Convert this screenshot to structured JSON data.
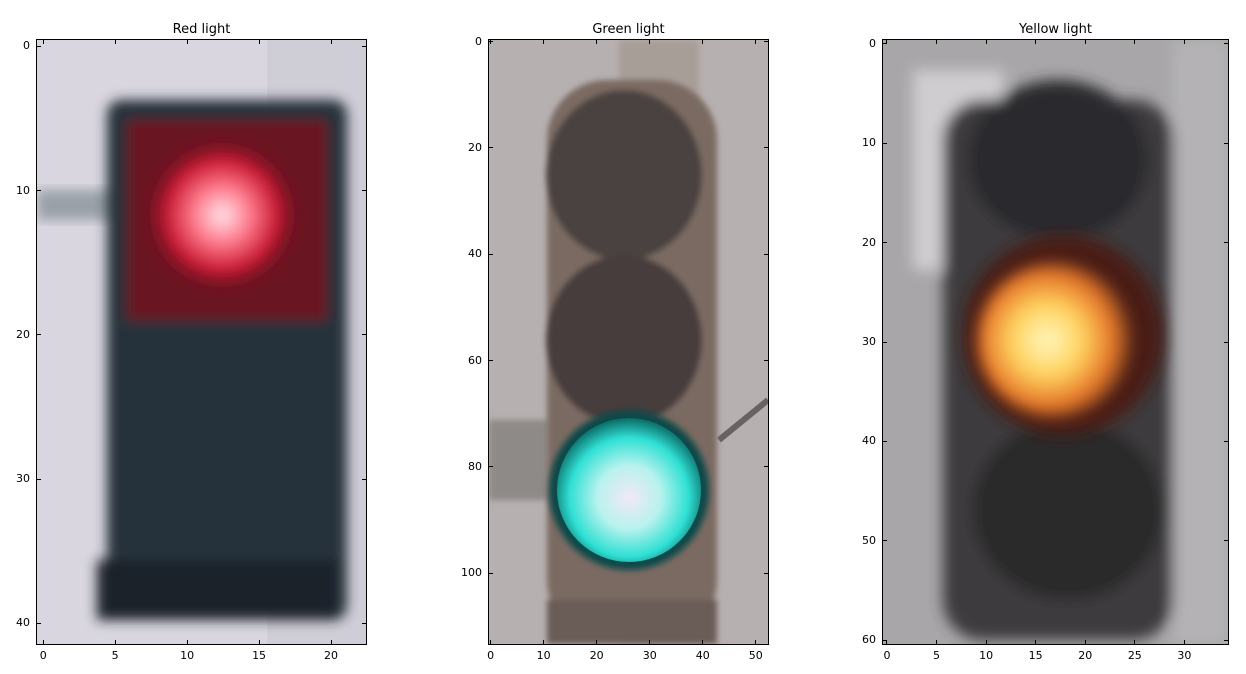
{
  "figure": {
    "panels": [
      {
        "id": "red",
        "title": "Red light",
        "light_color": "#ff3040",
        "xlim": [
          -0.5,
          22.5
        ],
        "ylim": [
          41.5,
          -0.5
        ],
        "xticks": [
          "0",
          "5",
          "10",
          "15",
          "20"
        ],
        "xtick_values": [
          0,
          5,
          10,
          15,
          20
        ],
        "yticks": [
          "0",
          "10",
          "20",
          "30",
          "40"
        ],
        "ytick_values": [
          0,
          10,
          20,
          30,
          40
        ]
      },
      {
        "id": "green",
        "title": "Green light",
        "light_color": "#3ee6dc",
        "xlim": [
          -0.5,
          52.5
        ],
        "ylim": [
          113.5,
          -0.5
        ],
        "xticks": [
          "0",
          "10",
          "20",
          "30",
          "40",
          "50"
        ],
        "xtick_values": [
          0,
          10,
          20,
          30,
          40,
          50
        ],
        "yticks": [
          "0",
          "20",
          "40",
          "60",
          "80",
          "100"
        ],
        "ytick_values": [
          0,
          20,
          40,
          60,
          80,
          100
        ]
      },
      {
        "id": "yellow",
        "title": "Yellow light",
        "light_color": "#ffc040",
        "xlim": [
          -0.5,
          34.5
        ],
        "ylim": [
          60.5,
          -0.5
        ],
        "xticks": [
          "0",
          "5",
          "10",
          "15",
          "20",
          "25",
          "30"
        ],
        "xtick_values": [
          0,
          5,
          10,
          15,
          20,
          25,
          30
        ],
        "yticks": [
          "0",
          "10",
          "20",
          "30",
          "40",
          "50",
          "60"
        ],
        "ytick_values": [
          0,
          10,
          20,
          30,
          40,
          50,
          60
        ]
      }
    ]
  }
}
